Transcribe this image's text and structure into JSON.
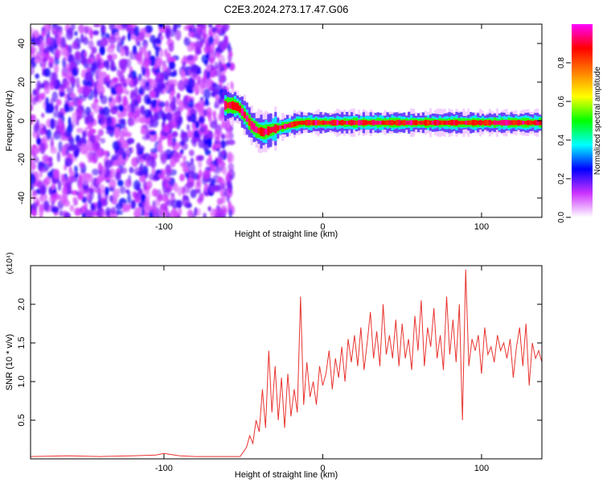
{
  "title": "C2E3.2024.273.17.47.G06",
  "chart_data": [
    {
      "type": "heatmap",
      "xlabel": "Height of straight line (km)",
      "ylabel": "Frequency (Hz)",
      "xlim": [
        -184,
        138
      ],
      "ylim": [
        -50,
        50
      ],
      "x_ticks": [
        -100,
        0,
        100
      ],
      "y_ticks": [
        -40,
        -20,
        0,
        20,
        40
      ],
      "noise_region": {
        "x_range": [
          -184,
          -57
        ],
        "y_range": [
          -50,
          50
        ]
      },
      "signal_track": {
        "x": [
          -62,
          -58,
          -54,
          -50,
          -46,
          -42,
          -38,
          -34,
          -30,
          -25,
          -20,
          -15,
          -10,
          -5,
          0,
          10,
          20,
          30,
          40,
          50,
          60,
          70,
          80,
          90,
          100,
          110,
          120,
          130,
          138
        ],
        "freq": [
          8,
          8,
          7,
          3,
          -2,
          -5,
          -6,
          -5,
          -4,
          -3,
          -2,
          -1,
          -1,
          -1,
          -1,
          -1,
          -1,
          -1,
          -1,
          -1,
          -1,
          -1,
          -1,
          -1,
          -1,
          -1,
          -1,
          -1,
          -1
        ]
      },
      "colorbar": {
        "label": "Normalized spectral amplitude",
        "range": [
          0,
          1
        ],
        "ticks": [
          "0.0",
          "0.2",
          "0.4",
          "0.6",
          "0.8"
        ],
        "colors": [
          "#ffffff",
          "#cc33ff",
          "#0000ff",
          "#00ffff",
          "#00ff00",
          "#ffff00",
          "#ff8000",
          "#ff0000",
          "#ff00ff"
        ]
      }
    },
    {
      "type": "line",
      "xlabel": "Height of straight line (km)",
      "ylabel": "SNR (10 * v/v)",
      "y_multiplier": "(x10⁴)",
      "xlim": [
        -184,
        138
      ],
      "ylim": [
        0,
        2.5
      ],
      "x_ticks": [
        -100,
        0,
        100
      ],
      "y_ticks": [
        "0.5",
        "1.0",
        "1.5",
        "2.0"
      ],
      "color": "#e8332f",
      "series": [
        {
          "x": [
            -184,
            -160,
            -140,
            -120,
            -105,
            -100,
            -90,
            -80,
            -70,
            -60,
            -52,
            -48,
            -46,
            -44,
            -42,
            -40,
            -38,
            -36,
            -34,
            -32,
            -30,
            -28,
            -26,
            -24,
            -22,
            -20,
            -18,
            -16,
            -14,
            -12,
            -10,
            -8,
            -6,
            -4,
            -2,
            0,
            2,
            4,
            6,
            8,
            10,
            12,
            14,
            16,
            18,
            20,
            22,
            24,
            26,
            28,
            30,
            32,
            34,
            36,
            38,
            40,
            42,
            44,
            46,
            48,
            50,
            52,
            54,
            56,
            58,
            60,
            62,
            64,
            66,
            68,
            70,
            72,
            74,
            76,
            78,
            80,
            82,
            84,
            86,
            88,
            90,
            92,
            94,
            96,
            98,
            100,
            102,
            104,
            106,
            108,
            110,
            112,
            114,
            116,
            118,
            120,
            122,
            124,
            126,
            128,
            130,
            132,
            134,
            136,
            138
          ],
          "values": [
            0.03,
            0.04,
            0.03,
            0.04,
            0.05,
            0.07,
            0.04,
            0.03,
            0.03,
            0.03,
            0.03,
            0.15,
            0.3,
            0.2,
            0.5,
            0.35,
            0.9,
            0.4,
            1.4,
            0.6,
            1.2,
            0.5,
            1.05,
            0.4,
            1.1,
            0.55,
            0.9,
            0.6,
            2.1,
            0.7,
            1.25,
            0.8,
            1.0,
            0.7,
            1.2,
            0.95,
            1.1,
            1.4,
            0.9,
            1.3,
            1.05,
            1.45,
            1.0,
            1.55,
            1.25,
            1.6,
            1.2,
            1.7,
            1.15,
            1.5,
            1.9,
            1.3,
            1.65,
            1.2,
            2.0,
            1.35,
            1.6,
            1.3,
            1.8,
            1.2,
            1.75,
            1.3,
            1.55,
            1.15,
            1.85,
            1.4,
            2.05,
            1.2,
            1.7,
            1.45,
            1.95,
            1.3,
            1.6,
            1.15,
            2.1,
            1.35,
            1.8,
            1.25,
            2.0,
            0.5,
            2.45,
            1.2,
            1.55,
            1.4,
            1.6,
            1.1,
            1.7,
            1.35,
            1.45,
            1.25,
            1.6,
            1.4,
            1.5,
            1.3,
            1.55,
            1.05,
            1.45,
            1.7,
            1.2,
            1.75,
            0.95,
            1.5,
            1.3,
            1.4,
            1.25
          ]
        }
      ]
    }
  ]
}
